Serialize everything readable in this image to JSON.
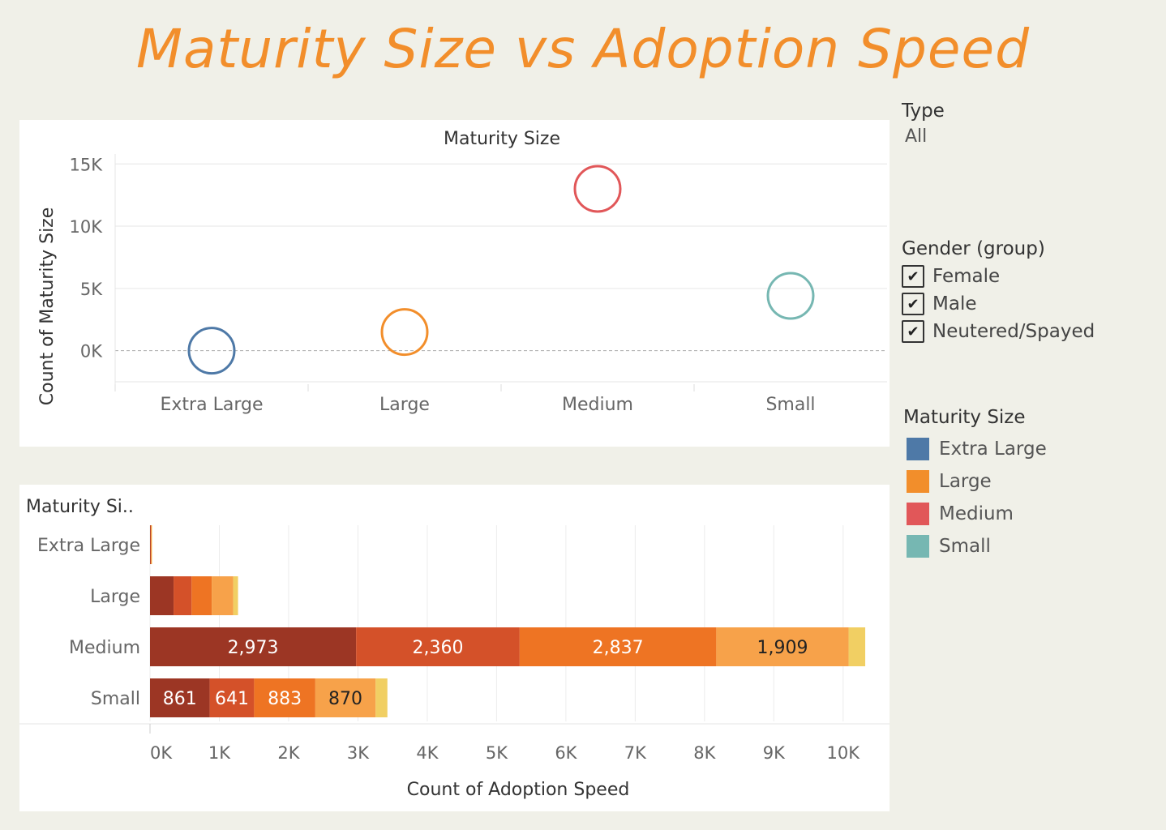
{
  "page": {
    "title": "Maturity Size vs Adoption Speed"
  },
  "filters": {
    "type": {
      "title": "Type",
      "value": "All"
    },
    "gender": {
      "title": "Gender (group)",
      "options": [
        {
          "label": "Female",
          "checked": true
        },
        {
          "label": "Male",
          "checked": true
        },
        {
          "label": "Neutered/Spayed",
          "checked": true
        }
      ]
    }
  },
  "legend": {
    "title": "Maturity Size",
    "items": [
      {
        "label": "Extra Large",
        "color": "#4e79a7"
      },
      {
        "label": "Large",
        "color": "#f28e2b"
      },
      {
        "label": "Medium",
        "color": "#e15759"
      },
      {
        "label": "Small",
        "color": "#76b7b2"
      }
    ]
  },
  "chart_data": [
    {
      "type": "scatter",
      "title": "Maturity Size",
      "xlabel": "",
      "ylabel": "Count of Maturity Size",
      "categories": [
        "Extra Large",
        "Large",
        "Medium",
        "Small"
      ],
      "values": [
        0,
        1500,
        13000,
        4400
      ],
      "colors": [
        "#4e79a7",
        "#f28e2b",
        "#e15759",
        "#76b7b2"
      ],
      "ylim": [
        -2500,
        15800
      ],
      "yticks": [
        0,
        5000,
        10000,
        15000
      ],
      "ytick_labels": [
        "0K",
        "5K",
        "10K",
        "15K"
      ],
      "marker": "hollow-circle",
      "grid": true
    },
    {
      "type": "bar",
      "orientation": "horizontal",
      "stacked": true,
      "title": "",
      "row_header": "Maturity Si..",
      "xlabel": "Count of Adoption Speed",
      "categories": [
        "Extra Large",
        "Large",
        "Medium",
        "Small"
      ],
      "xlim": [
        0,
        10400
      ],
      "xticks": [
        0,
        1000,
        2000,
        3000,
        4000,
        5000,
        6000,
        7000,
        8000,
        9000,
        10000
      ],
      "xtick_labels": [
        "0K",
        "1K",
        "2K",
        "3K",
        "4K",
        "5K",
        "6K",
        "7K",
        "8K",
        "9K",
        "10K"
      ],
      "segment_colors": [
        "#9c3624",
        "#d45129",
        "#ee7423",
        "#f7a24a",
        "#f1cf63"
      ],
      "segment_label_colors": [
        "#ffffff",
        "#ffffff",
        "#ffffff",
        "#222222",
        "#222222"
      ],
      "rows": [
        {
          "category": "Extra Large",
          "values": [
            6,
            6,
            6,
            6,
            3
          ],
          "labels": [
            "",
            "",
            "",
            "",
            ""
          ]
        },
        {
          "category": "Large",
          "values": [
            340,
            260,
            290,
            310,
            70
          ],
          "labels": [
            "",
            "",
            "",
            "",
            ""
          ]
        },
        {
          "category": "Medium",
          "values": [
            2973,
            2360,
            2837,
            1909,
            240
          ],
          "labels": [
            "2,973",
            "2,360",
            "2,837",
            "1,909",
            ""
          ]
        },
        {
          "category": "Small",
          "values": [
            861,
            641,
            883,
            870,
            170
          ],
          "labels": [
            "861",
            "641",
            "883",
            "870",
            ""
          ]
        }
      ],
      "grid": true
    }
  ]
}
